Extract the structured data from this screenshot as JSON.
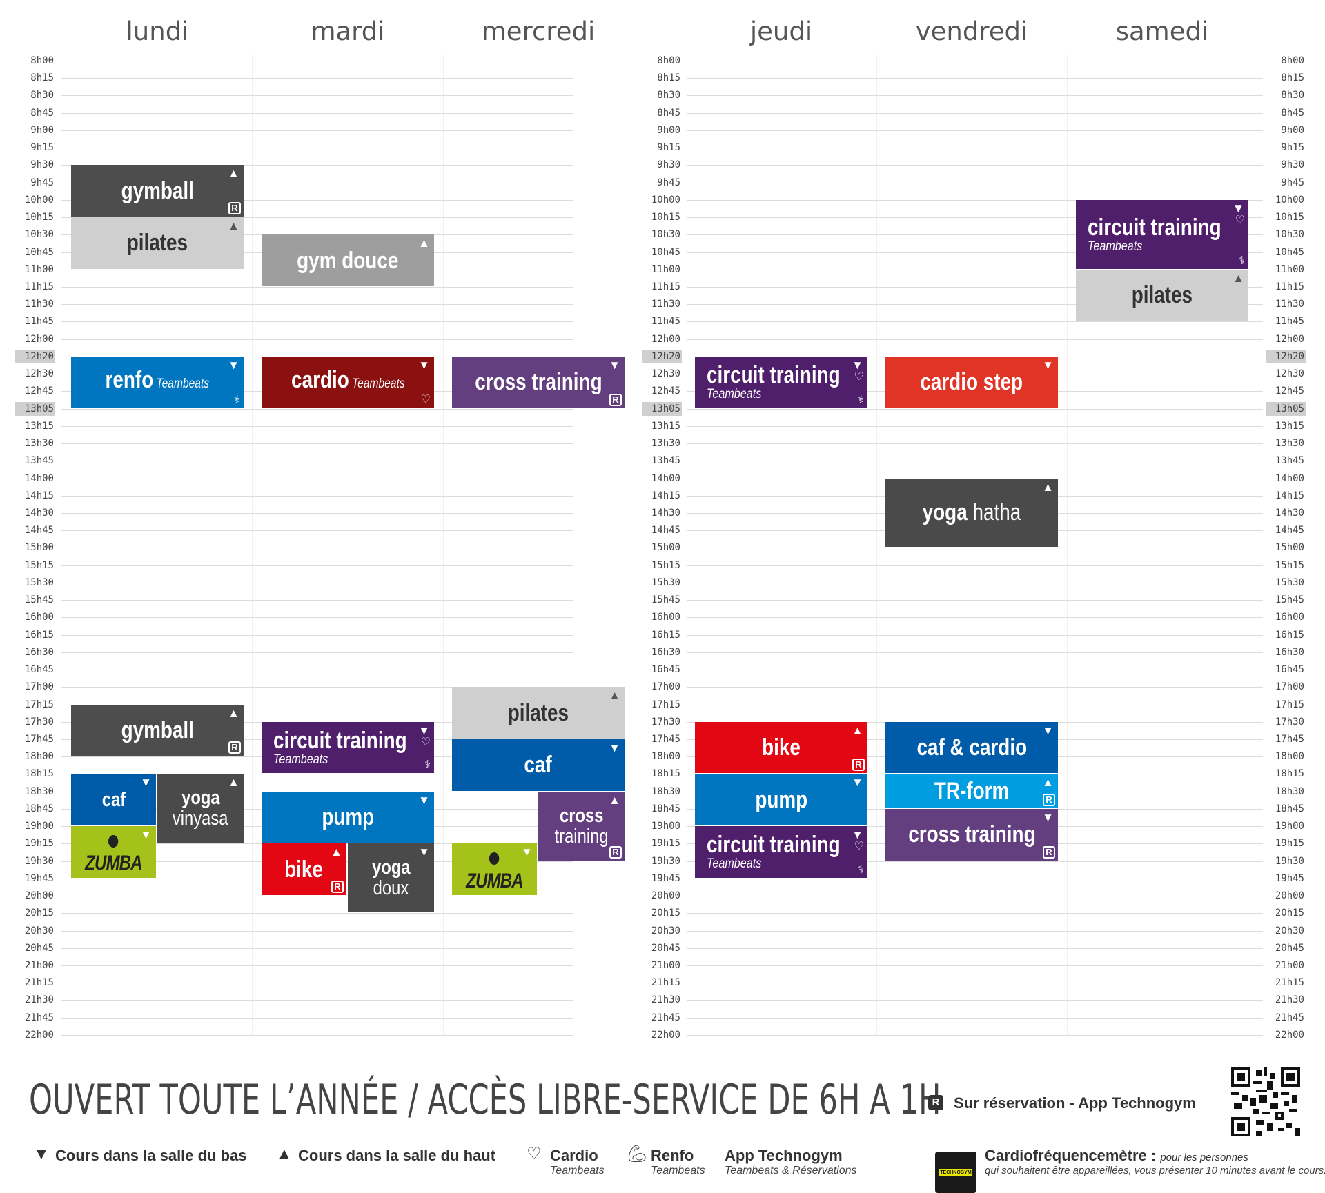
{
  "days": [
    "lundi",
    "mardi",
    "mercredi",
    "jeudi",
    "vendredi",
    "samedi"
  ],
  "times": [
    "8h00",
    "8h15",
    "8h30",
    "8h45",
    "9h00",
    "9h15",
    "9h30",
    "9h45",
    "10h00",
    "10h15",
    "10h30",
    "10h45",
    "11h00",
    "11h15",
    "11h30",
    "11h45",
    "12h00",
    "12h20",
    "12h30",
    "12h45",
    "13h05",
    "13h15",
    "13h30",
    "13h45",
    "14h00",
    "14h15",
    "14h30",
    "14h45",
    "15h00",
    "15h15",
    "15h30",
    "15h45",
    "16h00",
    "16h15",
    "16h30",
    "16h45",
    "17h00",
    "17h15",
    "17h30",
    "17h45",
    "18h00",
    "18h15",
    "18h30",
    "18h45",
    "19h00",
    "19h15",
    "19h30",
    "19h45",
    "20h00",
    "20h15",
    "20h30",
    "20h45",
    "21h00",
    "21h15",
    "21h30",
    "21h45",
    "22h00"
  ],
  "highlighted_times": [
    "12h20",
    "13h05"
  ],
  "colors": {
    "dark_gray": "#4d4d4d",
    "light_gray": "#cfcfcf",
    "mid_gray": "#9e9e9e",
    "blue": "#0076c0",
    "dark_red": "#8b1010",
    "purple": "#643f80",
    "deep_purple": "#4f1f6c",
    "red": "#e03427",
    "bike_red": "#e30613",
    "navy_blue": "#005ba9",
    "light_blue": "#009ee0",
    "lime": "#a4c21a",
    "charcoal": "#4a4a4a"
  },
  "classes": [
    {
      "day": 0,
      "start": "9h30",
      "end": "10h15",
      "name": "gymball",
      "color": "dark_gray",
      "room": "up",
      "reservation": true
    },
    {
      "day": 0,
      "start": "10h15",
      "end": "11h00",
      "name": "pilates",
      "color": "light_gray",
      "room": "up",
      "dark_text": true
    },
    {
      "day": 0,
      "start": "12h20",
      "end": "13h05",
      "name": "renfo",
      "extra": "Teambeats",
      "color": "blue",
      "room": "down",
      "icon": "renfo"
    },
    {
      "day": 0,
      "start": "17h15",
      "end": "18h00",
      "name": "gymball",
      "color": "dark_gray",
      "room": "up",
      "reservation": true
    },
    {
      "day": 0,
      "start": "18h15",
      "end": "19h00",
      "name": "caf",
      "color": "navy_blue",
      "room": "down",
      "col": 0,
      "cols": 2,
      "small": true
    },
    {
      "day": 0,
      "start": "18h15",
      "end": "19h15",
      "name": "yoga",
      "line2": "vinyasa",
      "color": "charcoal",
      "room": "up",
      "col": 1,
      "cols": 2,
      "small": true
    },
    {
      "day": 0,
      "start": "19h00",
      "end": "19h45",
      "name": "zumba",
      "color": "lime",
      "room": "down",
      "col": 0,
      "cols": 2,
      "zumba": true
    },
    {
      "day": 1,
      "start": "10h30",
      "end": "11h15",
      "name": "gym douce",
      "color": "mid_gray",
      "room": "up"
    },
    {
      "day": 1,
      "start": "12h20",
      "end": "13h05",
      "name": "cardio",
      "extra": "Teambeats",
      "color": "dark_red",
      "room": "down",
      "icon": "cardio"
    },
    {
      "day": 1,
      "start": "17h30",
      "end": "18h15",
      "name": "circuit training",
      "sub": "Teambeats",
      "color": "deep_purple",
      "room": "down",
      "icon": "both",
      "left": true
    },
    {
      "day": 1,
      "start": "18h30",
      "end": "19h15",
      "name": "pump",
      "color": "blue",
      "room": "down"
    },
    {
      "day": 1,
      "start": "19h15",
      "end": "20h00",
      "name": "bike",
      "color": "bike_red",
      "room": "up",
      "col": 0,
      "cols": 2,
      "reservation": true
    },
    {
      "day": 1,
      "start": "19h15",
      "end": "20h15",
      "name": "yoga",
      "line2": "doux",
      "color": "charcoal",
      "room": "down",
      "col": 1,
      "cols": 2,
      "small": true
    },
    {
      "day": 2,
      "start": "12h20",
      "end": "13h05",
      "name": "cross training",
      "color": "purple",
      "room": "down",
      "reservation": true
    },
    {
      "day": 2,
      "start": "17h00",
      "end": "17h45",
      "name": "pilates",
      "color": "light_gray",
      "room": "up",
      "dark_text": true
    },
    {
      "day": 2,
      "start": "17h45",
      "end": "18h30",
      "name": "caf",
      "color": "navy_blue",
      "room": "down"
    },
    {
      "day": 2,
      "start": "18h30",
      "end": "19h30",
      "name": "cross",
      "line2": "training",
      "color": "purple",
      "room": "up",
      "col": 1,
      "cols": 2,
      "small": true,
      "reservation": true
    },
    {
      "day": 2,
      "start": "19h15",
      "end": "20h00",
      "name": "zumba",
      "color": "lime",
      "room": "down",
      "col": 0,
      "cols": 2,
      "zumba": true
    },
    {
      "day": 3,
      "start": "12h20",
      "end": "13h05",
      "name": "circuit training",
      "sub": "Teambeats",
      "color": "deep_purple",
      "room": "down",
      "icon": "both",
      "left": true
    },
    {
      "day": 3,
      "start": "17h30",
      "end": "18h15",
      "name": "bike",
      "color": "bike_red",
      "room": "up",
      "reservation": true
    },
    {
      "day": 3,
      "start": "18h15",
      "end": "19h00",
      "name": "pump",
      "color": "blue",
      "room": "down"
    },
    {
      "day": 3,
      "start": "19h00",
      "end": "19h45",
      "name": "circuit training",
      "sub": "Teambeats",
      "color": "deep_purple",
      "room": "down",
      "icon": "both",
      "left": true
    },
    {
      "day": 4,
      "start": "12h20",
      "end": "13h05",
      "name": "cardio step",
      "color": "red",
      "room": "down"
    },
    {
      "day": 4,
      "start": "14h00",
      "end": "15h00",
      "name": "yoga",
      "name_light": " hatha",
      "color": "charcoal",
      "room": "up"
    },
    {
      "day": 4,
      "start": "17h30",
      "end": "18h15",
      "name": "caf & cardio",
      "color": "navy_blue",
      "room": "down"
    },
    {
      "day": 4,
      "start": "18h15",
      "end": "18h45",
      "name": "TR-form",
      "color": "light_blue",
      "room": "up",
      "reservation": true
    },
    {
      "day": 4,
      "start": "18h45",
      "end": "19h30",
      "name": "cross training",
      "color": "purple",
      "room": "down",
      "reservation": true
    },
    {
      "day": 5,
      "start": "10h00",
      "end": "11h00",
      "name": "circuit training",
      "sub": "Teambeats",
      "color": "deep_purple",
      "room": "down",
      "icon": "both",
      "left": true
    },
    {
      "day": 5,
      "start": "11h00",
      "end": "11h45",
      "name": "pilates",
      "color": "light_gray",
      "room": "up",
      "dark_text": true
    }
  ],
  "footer": {
    "headline": "OUVERT TOUTE L’ANNÉE  / ACCÈS LIBRE-SERVICE DE 6H A 1H",
    "reservation_label": "Sur réservation - App Technogym",
    "legend_down": "Cours dans la salle du bas",
    "legend_up": "Cours dans la salle du haut",
    "cardio_label": "Cardio",
    "cardio_sub": "Teambeats",
    "renfo_label": "Renfo",
    "renfo_sub": "Teambeats",
    "app_label": "App Technogym",
    "app_sub": "Teambeats & Réservations",
    "cardio_meter_label": "Cardiofréquencemètre :",
    "cardio_meter_note1": "pour les personnes",
    "cardio_meter_note2": "qui souhaitent être appareillées, vous présenter 10 minutes avant le cours.",
    "techno_logo_text": "TECHNOGYM"
  },
  "icons": {
    "down_marker": "triangle-down-icon",
    "up_marker": "triangle-up-icon",
    "reservation": "r-badge-icon",
    "cardio": "heart-pulse-icon",
    "renfo": "muscle-arm-icon",
    "qr": "qr-code-icon"
  }
}
